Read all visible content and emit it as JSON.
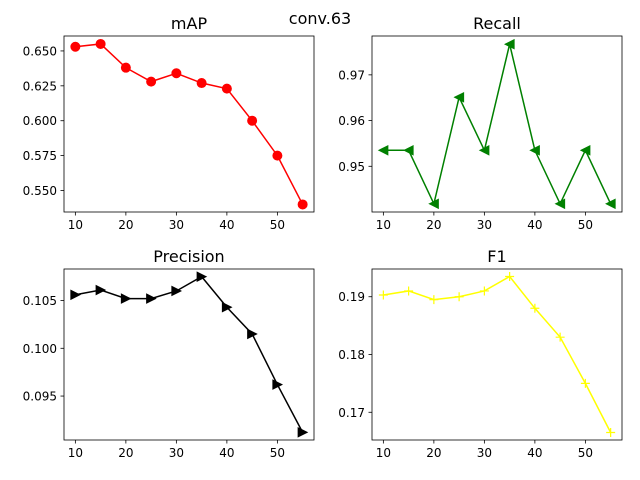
{
  "suptitle": "conv.63",
  "chart_data": [
    {
      "type": "line",
      "title": "mAP",
      "x": [
        10,
        15,
        20,
        25,
        30,
        35,
        40,
        45,
        50,
        55
      ],
      "series": [
        {
          "values": [
            0.653,
            0.655,
            0.638,
            0.628,
            0.634,
            0.627,
            0.623,
            0.6,
            0.575,
            0.54
          ]
        }
      ],
      "color": "#ff0000",
      "marker": "circle",
      "xlim": [
        7.75,
        57.25
      ],
      "ylim": [
        0.5346,
        0.6607
      ],
      "xticks": [
        10,
        20,
        30,
        40,
        50
      ],
      "yticks": [
        0.55,
        0.575,
        0.6,
        0.625,
        0.65
      ],
      "ytick_labels": [
        "0.550",
        "0.575",
        "0.600",
        "0.625",
        "0.650"
      ]
    },
    {
      "type": "line",
      "title": "Recall",
      "x": [
        10,
        15,
        20,
        25,
        30,
        35,
        40,
        45,
        50,
        55
      ],
      "series": [
        {
          "values": [
            0.9535,
            0.9535,
            0.9418,
            0.9651,
            0.9535,
            0.9767,
            0.9535,
            0.9418,
            0.9535,
            0.9418
          ]
        }
      ],
      "color": "#008000",
      "marker": "triangle-left",
      "xlim": [
        7.75,
        57.25
      ],
      "ylim": [
        0.94,
        0.9785
      ],
      "xticks": [
        10,
        20,
        30,
        40,
        50
      ],
      "yticks": [
        0.95,
        0.96,
        0.97
      ],
      "ytick_labels": [
        "0.95",
        "0.96",
        "0.97"
      ]
    },
    {
      "type": "line",
      "title": "Precision",
      "x": [
        10,
        15,
        20,
        25,
        30,
        35,
        40,
        45,
        50,
        55
      ],
      "series": [
        {
          "values": [
            0.1056,
            0.1061,
            0.1052,
            0.1052,
            0.106,
            0.1075,
            0.1043,
            0.1015,
            0.0962,
            0.0912
          ]
        }
      ],
      "color": "#000000",
      "marker": "triangle-right",
      "xlim": [
        7.75,
        57.25
      ],
      "ylim": [
        0.0904,
        0.1083
      ],
      "xticks": [
        10,
        20,
        30,
        40,
        50
      ],
      "yticks": [
        0.095,
        0.1,
        0.105
      ],
      "ytick_labels": [
        "0.095",
        "0.100",
        "0.105"
      ]
    },
    {
      "type": "line",
      "title": "F1",
      "x": [
        10,
        15,
        20,
        25,
        30,
        35,
        40,
        45,
        50,
        55
      ],
      "series": [
        {
          "values": [
            0.1903,
            0.191,
            0.1895,
            0.19,
            0.191,
            0.1935,
            0.188,
            0.183,
            0.175,
            0.1665
          ]
        }
      ],
      "color": "#ffff00",
      "marker": "plus",
      "xlim": [
        7.75,
        57.25
      ],
      "ylim": [
        0.1652,
        0.1948
      ],
      "xticks": [
        10,
        20,
        30,
        40,
        50
      ],
      "yticks": [
        0.17,
        0.18,
        0.19
      ],
      "ytick_labels": [
        "0.17",
        "0.18",
        "0.19"
      ]
    }
  ]
}
